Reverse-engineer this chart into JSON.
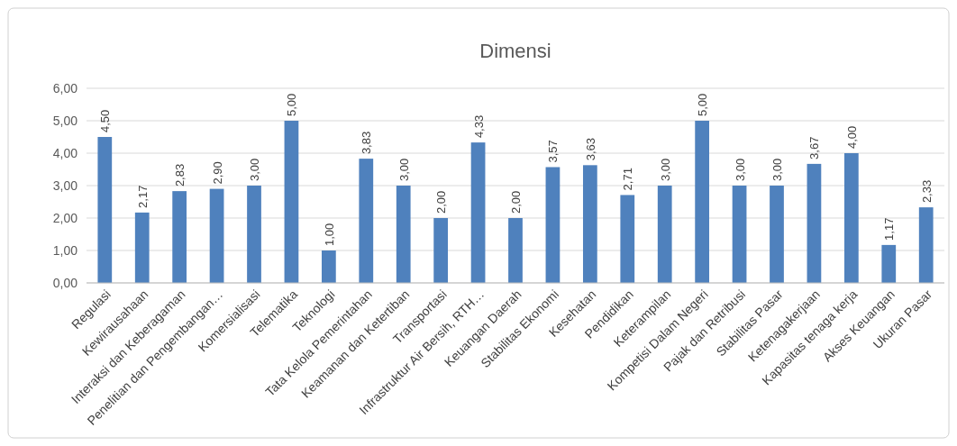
{
  "chart_data": {
    "type": "bar",
    "title": "Dimensi",
    "categories": [
      "Regulasi",
      "Kewirausahaan",
      "Interaksi dan Keberagaman",
      "Penelitian dan Pengembangan…",
      "Komersialisasi",
      "Telematika",
      "Teknologi",
      "Tata Kelola Pemerintahan",
      "Keamanan dan Ketertiban",
      "Transportasi",
      "Infrastruktur Air Bersih, RTH…",
      "Keuangan Daerah",
      "Stabilitas Ekonomi",
      "Kesehatan",
      "Pendidikan",
      "Keterampilan",
      "Kompetisi Dalam Negeri",
      "Pajak dan Retribusi",
      "Stabilitas Pasar",
      "Ketenagakerjaan",
      "Kapasitas tenaga kerja",
      "Akses Keuangan",
      "Ukuran Pasar"
    ],
    "values": [
      4.5,
      2.17,
      2.83,
      2.9,
      3,
      5,
      1,
      3.83,
      3,
      2,
      4.33,
      2,
      3.57,
      3.63,
      2.71,
      3,
      5,
      3,
      3,
      3.67,
      4,
      1.17,
      2.33
    ],
    "value_labels": [
      "4,50",
      "2,17",
      "2,83",
      "2,90",
      "3,00",
      "5,00",
      "1,00",
      "3,83",
      "3,00",
      "2,00",
      "4,33",
      "2,00",
      "3,57",
      "3,63",
      "2,71",
      "3,00",
      "5,00",
      "3,00",
      "3,00",
      "3,67",
      "4,00",
      "1,17",
      "2,33"
    ],
    "color": "#4f81bd",
    "ylim": [
      0,
      6
    ],
    "yticks": [
      {
        "value": 0,
        "label": "0,00"
      },
      {
        "value": 1,
        "label": "1,00"
      },
      {
        "value": 2,
        "label": "2,00"
      },
      {
        "value": 3,
        "label": "3,00"
      },
      {
        "value": 4,
        "label": "4,00"
      },
      {
        "value": 5,
        "label": "5,00"
      },
      {
        "value": 6,
        "label": "6,00"
      }
    ],
    "grid": "y"
  }
}
